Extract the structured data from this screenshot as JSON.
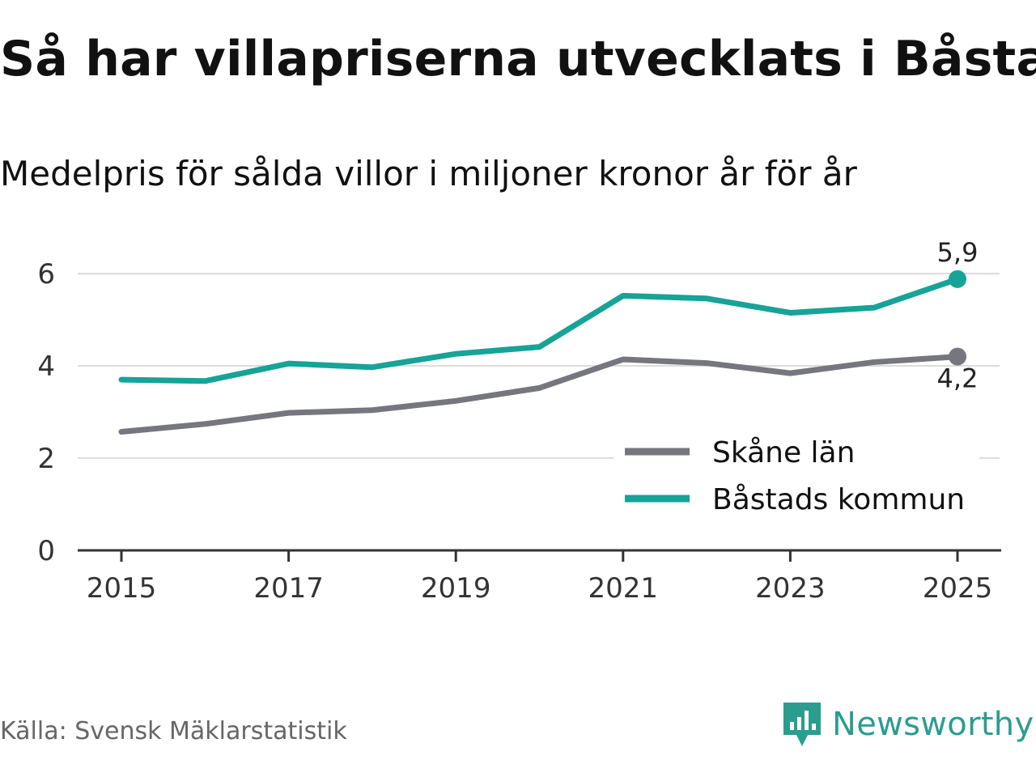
{
  "header": {
    "title": "Så har villapriserna utvecklats i Båstad",
    "subtitle": "Medelpris för sålda villor i miljoner kronor år för år"
  },
  "footer": {
    "source": "Källa: Svensk Mäklarstatistik",
    "brand": "Newsworthy",
    "brand_icon": "newsworthy-logo-icon",
    "brand_color": "#2a9d8f"
  },
  "chart_data": {
    "type": "line",
    "title": "Så har villapriserna utvecklats i Båstad",
    "subtitle": "Medelpris för sålda villor i miljoner kronor år för år",
    "xlabel": "",
    "ylabel": "",
    "x": [
      2015,
      2016,
      2017,
      2018,
      2019,
      2020,
      2021,
      2022,
      2023,
      2024,
      2025
    ],
    "xlim": [
      2015,
      2025
    ],
    "ylim": [
      0,
      6.5
    ],
    "x_ticks": [
      "2015",
      "2017",
      "2019",
      "2021",
      "2023",
      "2025"
    ],
    "y_ticks": [
      "0",
      "2",
      "4",
      "6"
    ],
    "grid": true,
    "legend": "bottom-right",
    "series": [
      {
        "name": "Skåne län",
        "color": "#76767e",
        "values": [
          2.57,
          2.74,
          2.98,
          3.04,
          3.24,
          3.52,
          4.14,
          4.06,
          3.84,
          4.08,
          4.2
        ],
        "end_label": "4,2"
      },
      {
        "name": "Båstads kommun",
        "color": "#17a397",
        "values": [
          3.7,
          3.67,
          4.05,
          3.97,
          4.26,
          4.41,
          5.52,
          5.46,
          5.15,
          5.26,
          5.88
        ],
        "end_label": "5,9"
      }
    ]
  }
}
